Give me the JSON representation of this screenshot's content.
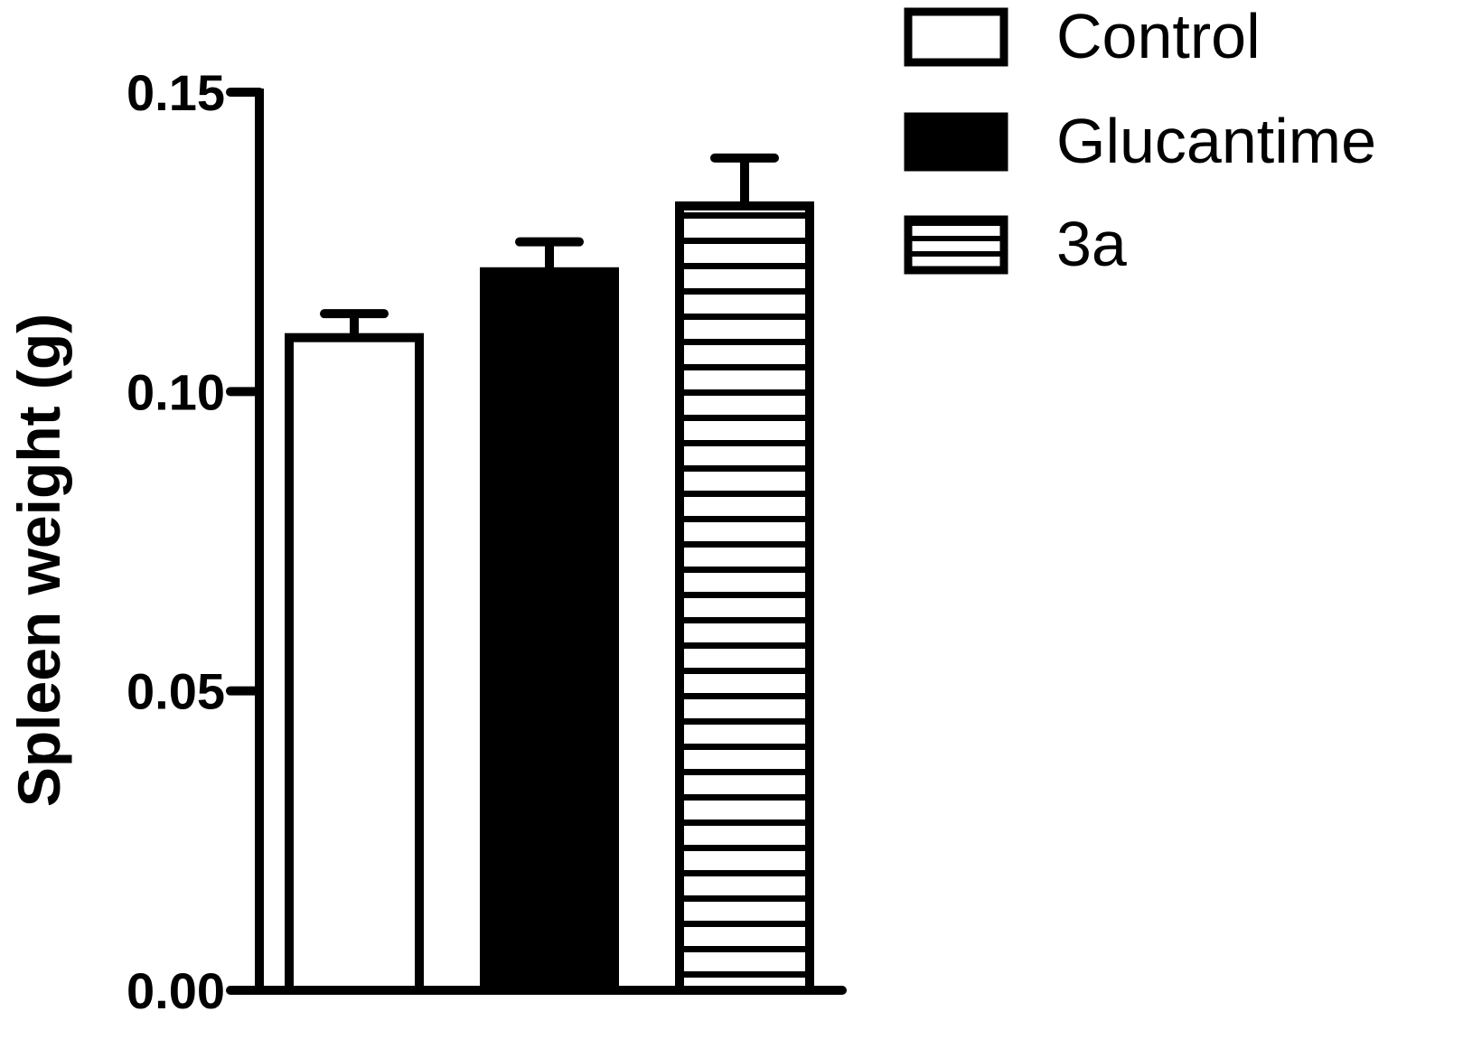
{
  "chart_data": {
    "type": "bar",
    "categories": [
      "Control",
      "Glucantime",
      "3a"
    ],
    "values": [
      0.109,
      0.12,
      0.131
    ],
    "errors": [
      0.004,
      0.005,
      0.008
    ],
    "ylabel": "Spleen weight (g)",
    "xlabel": "",
    "ylim": [
      0,
      0.15
    ],
    "yticks": [
      0.0,
      0.05,
      0.1,
      0.15
    ],
    "ytick_labels": [
      "0.00",
      "0.05",
      "0.10",
      "0.15"
    ],
    "grid": false,
    "legend": {
      "placement": "top-right",
      "entries": [
        {
          "label": "Control",
          "fill": "white"
        },
        {
          "label": "Glucantime",
          "fill": "black"
        },
        {
          "label": "3a",
          "fill": "horizontal-stripes"
        }
      ]
    },
    "colors": {
      "stroke": "#000000",
      "background": "#ffffff"
    }
  }
}
